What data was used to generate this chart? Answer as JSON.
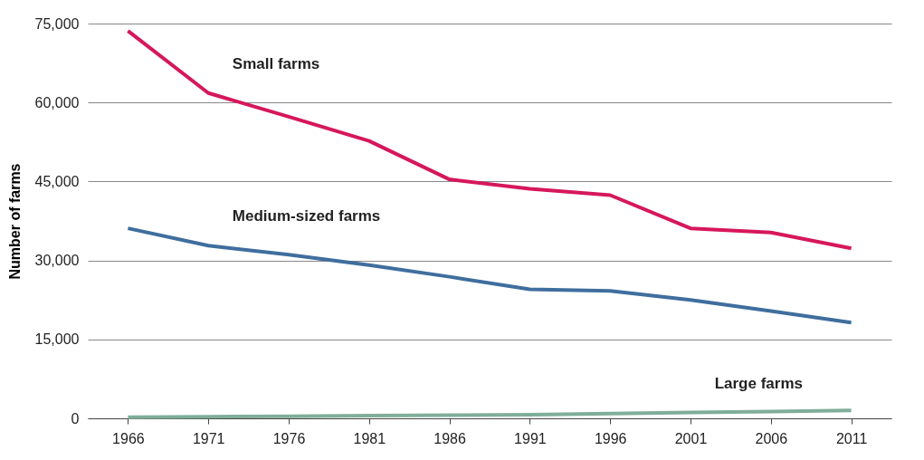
{
  "chart_data": {
    "type": "line",
    "ylabel": "Number of farms",
    "categories": [
      "1966",
      "1971",
      "1976",
      "1981",
      "1986",
      "1991",
      "1996",
      "2001",
      "2006",
      "2011"
    ],
    "series": [
      {
        "name": "Small farms",
        "color": "#d6175b",
        "values": [
          73600,
          61800,
          57300,
          52700,
          45400,
          43600,
          42400,
          36100,
          35300,
          32300
        ]
      },
      {
        "name": "Medium-sized farms",
        "color": "#3f6e9e",
        "values": [
          36100,
          32800,
          31100,
          29100,
          26900,
          24500,
          24200,
          22500,
          20400,
          18200
        ]
      },
      {
        "name": "Large farms",
        "color": "#7fae9a",
        "values": [
          200,
          300,
          400,
          500,
          600,
          700,
          900,
          1100,
          1300,
          1500
        ]
      }
    ],
    "ylim": [
      0,
      75000
    ],
    "yticks": [
      0,
      {
        "value": 15000,
        "label": "15,000"
      },
      {
        "value": 30000,
        "label": "30,000"
      },
      {
        "value": 45000,
        "label": "45,000"
      },
      {
        "value": 60000,
        "label": "60,000"
      },
      {
        "value": 75000,
        "label": "75,000"
      }
    ],
    "grid": "y",
    "legend": false,
    "marker": "none",
    "line_style": "solid"
  }
}
